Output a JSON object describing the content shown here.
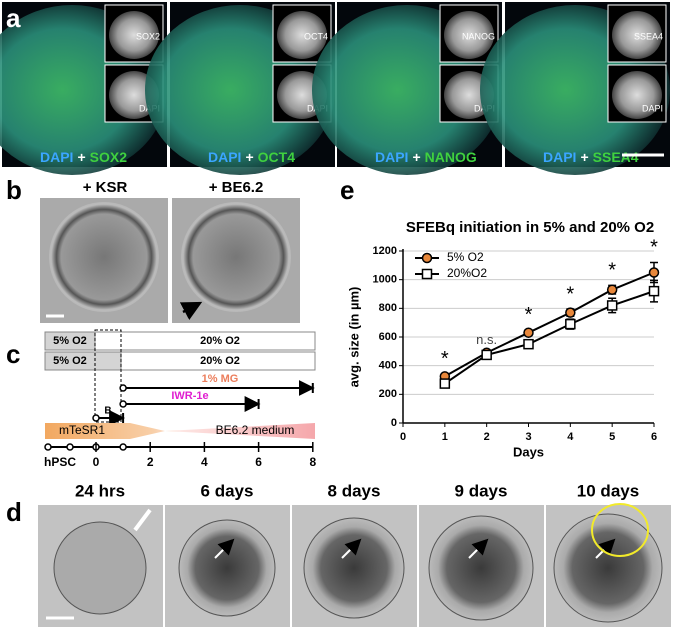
{
  "panel_labels": [
    "a",
    "b",
    "c",
    "d",
    "e"
  ],
  "panel_a": {
    "images": [
      {
        "inset_top": "SOX2",
        "inset_bottom": "DAPI",
        "caption": [
          "DAPI",
          "+",
          "SOX2"
        ]
      },
      {
        "inset_top": "OCT4",
        "inset_bottom": "DAPI",
        "caption": [
          "DAPI",
          "+",
          "OCT4"
        ]
      },
      {
        "inset_top": "NANOG",
        "inset_bottom": "DAPI",
        "caption": [
          "DAPI",
          "+",
          "NANOG"
        ]
      },
      {
        "inset_top": "SSEA4",
        "inset_bottom": "DAPI",
        "caption": [
          "DAPI",
          "+",
          "SSEA4"
        ]
      }
    ]
  },
  "panel_b": {
    "labels": [
      "+ KSR",
      "+ BE6.2"
    ]
  },
  "panel_c": {
    "rows": [
      [
        "5% O2",
        "20% O2"
      ],
      [
        "5% O2",
        "20% O2"
      ]
    ],
    "mg": "1% MG",
    "iwr": "IWR-1e",
    "b": "B",
    "media": [
      "mTeSR1",
      "BE6.2 medium"
    ],
    "start": "hPSC",
    "ticks": [
      "0",
      "2",
      "4",
      "6",
      "8"
    ]
  },
  "panel_d": {
    "labels": [
      "24 hrs",
      "6 days",
      "8 days",
      "9 days",
      "10 days"
    ]
  },
  "chart_data": {
    "type": "line",
    "title": "SFEBq initiation in 5% and 20% O2",
    "xlabel": "Days",
    "ylabel": "avg. size (in µm)",
    "x": [
      1,
      2,
      3,
      4,
      5,
      6
    ],
    "xlim": [
      0,
      6
    ],
    "xticks": [
      0,
      1,
      2,
      3,
      4,
      5,
      6
    ],
    "ylim": [
      0,
      1200
    ],
    "yticks": [
      0,
      200,
      400,
      600,
      800,
      1000,
      1200
    ],
    "grid": true,
    "legend": "upper left",
    "series": [
      {
        "name": "5% O2",
        "color": "#e8873a",
        "marker": "circle",
        "values": [
          325,
          490,
          630,
          770,
          930,
          1050
        ],
        "errors": [
          20,
          15,
          20,
          25,
          30,
          70
        ]
      },
      {
        "name": "20%O2",
        "color": "#ffffff",
        "marker": "square",
        "values": [
          275,
          475,
          550,
          690,
          820,
          920
        ],
        "errors": [
          25,
          15,
          25,
          35,
          50,
          75
        ]
      }
    ],
    "annotations": [
      {
        "text": "*",
        "x": 1
      },
      {
        "text": "n.s.",
        "x": 2
      },
      {
        "text": "*",
        "x": 3
      },
      {
        "text": "*",
        "x": 4
      },
      {
        "text": "*",
        "x": 5
      },
      {
        "text": "*",
        "x": 6
      }
    ]
  }
}
